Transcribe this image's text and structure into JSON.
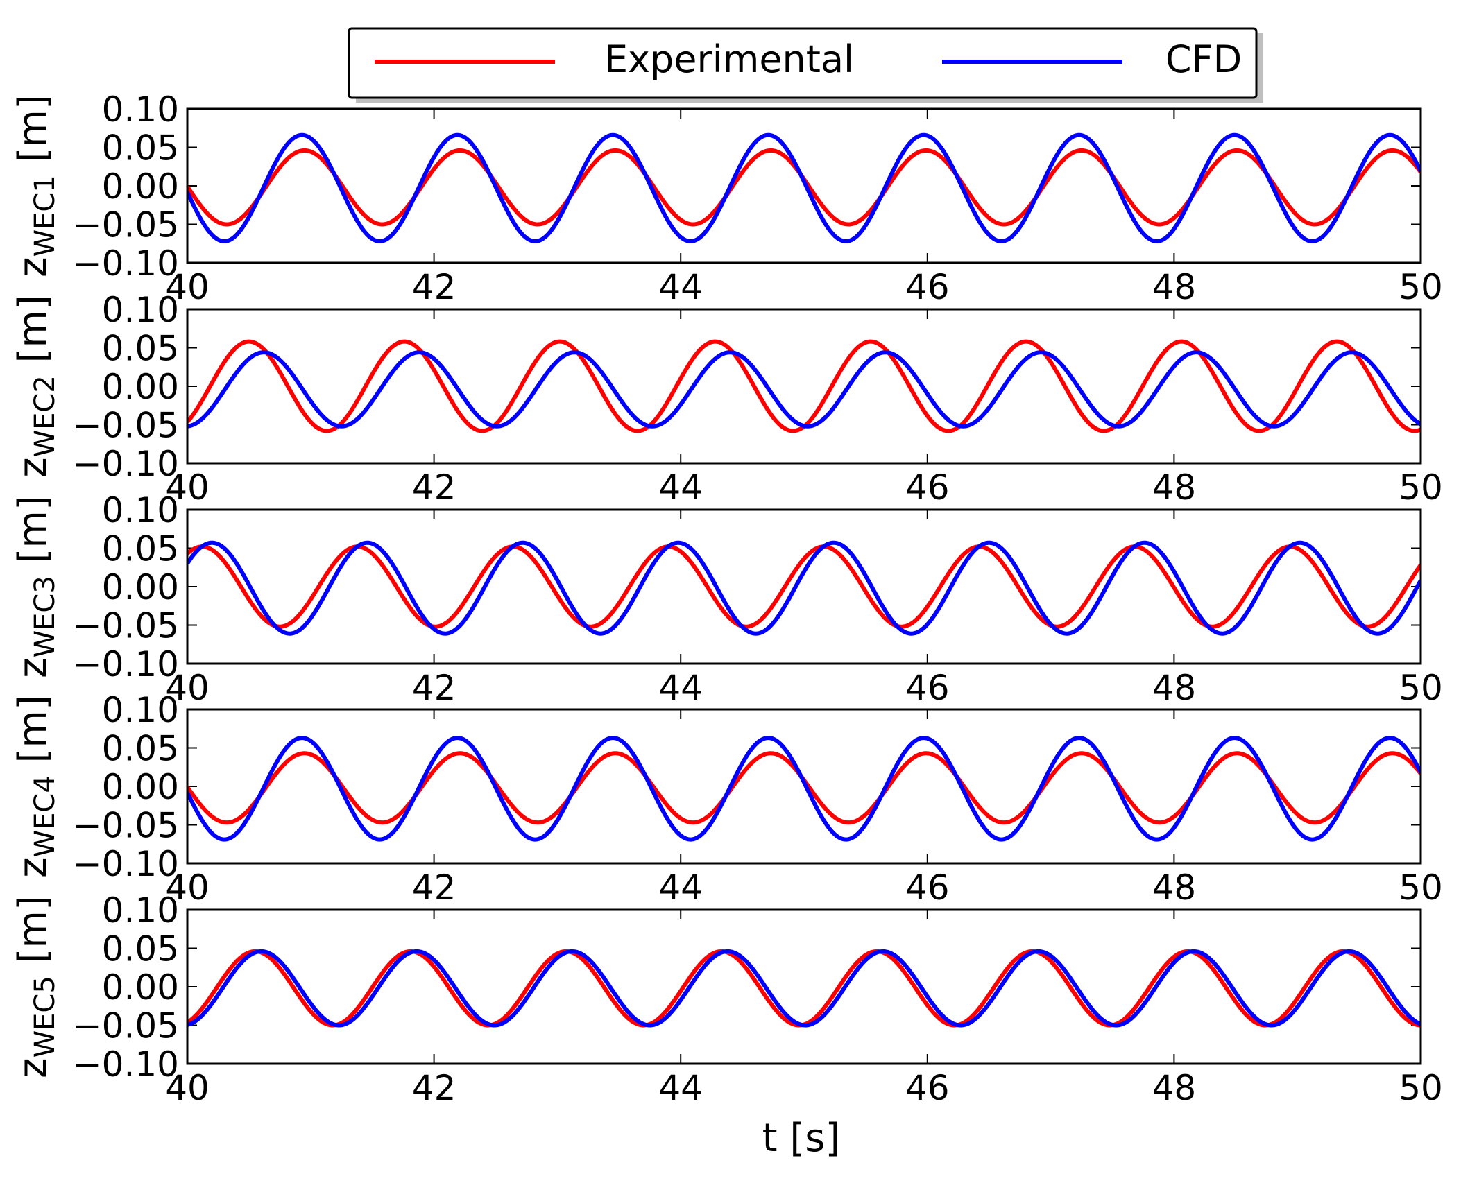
{
  "chart_data": {
    "type": "line",
    "xlabel": "t [s]",
    "xlim": [
      40,
      50
    ],
    "x_ticks": [
      "40",
      "42",
      "44",
      "46",
      "48",
      "50"
    ],
    "ylim": [
      -0.1,
      0.1
    ],
    "y_ticks": [
      "0.10",
      "0.05",
      "0.00",
      "−0.05",
      "−0.10"
    ],
    "legend": {
      "placement": "top-center",
      "entries": [
        {
          "name": "Experimental",
          "color": "#ff0000"
        },
        {
          "name": "CFD",
          "color": "#0000ff"
        }
      ]
    },
    "subplots": [
      {
        "ylabel_main": "z",
        "ylabel_sub": "WEC1",
        "ylabel_unit": "[m]",
        "period": 1.26,
        "series": [
          {
            "name": "Experimental",
            "color": "#ff0000",
            "amplitude": 0.048,
            "offset": -0.002,
            "t_peak": 40.95
          },
          {
            "name": "CFD",
            "color": "#0000ff",
            "amplitude": 0.069,
            "offset": -0.003,
            "t_peak": 40.93
          }
        ]
      },
      {
        "ylabel_main": "z",
        "ylabel_sub": "WEC2",
        "ylabel_unit": "[m]",
        "period": 1.26,
        "series": [
          {
            "name": "Experimental",
            "color": "#ff0000",
            "amplitude": 0.058,
            "offset": 0.0,
            "t_peak": 40.5
          },
          {
            "name": "CFD",
            "color": "#0000ff",
            "amplitude": 0.048,
            "offset": -0.004,
            "t_peak": 40.62
          }
        ]
      },
      {
        "ylabel_main": "z",
        "ylabel_sub": "WEC3",
        "ylabel_unit": "[m]",
        "period": 1.26,
        "series": [
          {
            "name": "Experimental",
            "color": "#ff0000",
            "amplitude": 0.052,
            "offset": 0.0,
            "t_peak": 40.12
          },
          {
            "name": "CFD",
            "color": "#0000ff",
            "amplitude": 0.059,
            "offset": -0.002,
            "t_peak": 40.2
          }
        ]
      },
      {
        "ylabel_main": "z",
        "ylabel_sub": "WEC4",
        "ylabel_unit": "[m]",
        "period": 1.26,
        "series": [
          {
            "name": "Experimental",
            "color": "#ff0000",
            "amplitude": 0.045,
            "offset": -0.002,
            "t_peak": 40.95
          },
          {
            "name": "CFD",
            "color": "#0000ff",
            "amplitude": 0.066,
            "offset": -0.003,
            "t_peak": 40.93
          }
        ]
      },
      {
        "ylabel_main": "z",
        "ylabel_sub": "WEC5",
        "ylabel_unit": "[m]",
        "period": 1.26,
        "series": [
          {
            "name": "Experimental",
            "color": "#ff0000",
            "amplitude": 0.048,
            "offset": -0.002,
            "t_peak": 40.55
          },
          {
            "name": "CFD",
            "color": "#0000ff",
            "amplitude": 0.048,
            "offset": -0.002,
            "t_peak": 40.6
          }
        ]
      }
    ]
  }
}
